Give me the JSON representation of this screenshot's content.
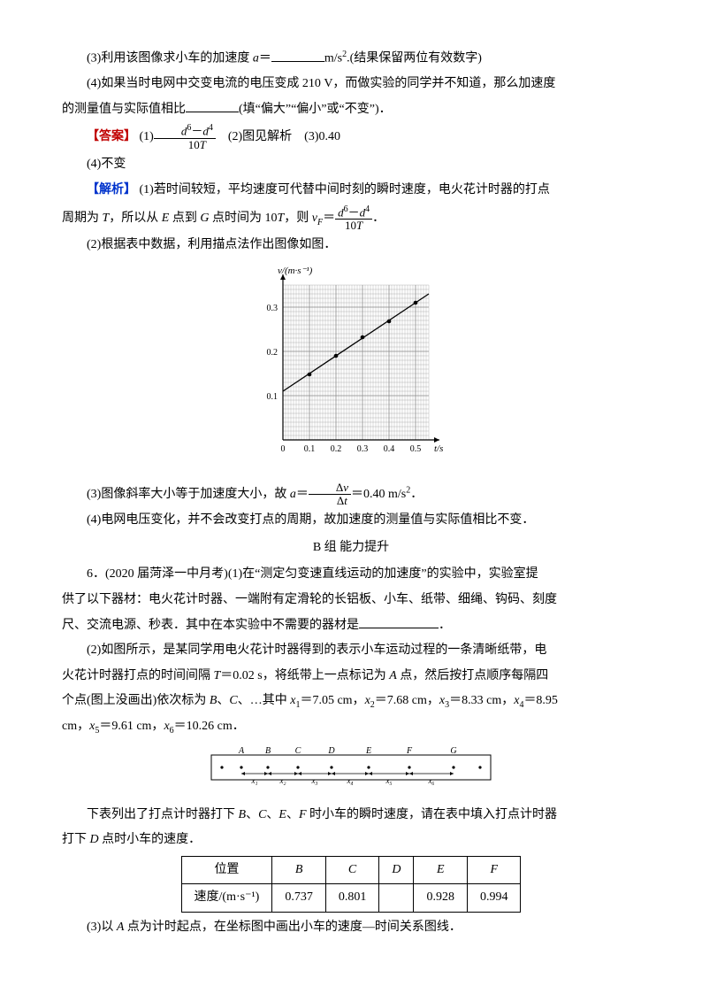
{
  "p3": {
    "prefix": "(3)利用该图像求小车的加速度 ",
    "var_a": "a",
    "eq": "＝",
    "unit": "m/s",
    "sup2": "2",
    "suffix": ".(结果保留两位有效数字)"
  },
  "p4": {
    "line1_a": "(4)如果当时电网中交变电流的电压变成 210 V，而做实验的同学并不知道，那么加速度",
    "line2": "的测量值与实际值相比",
    "line2_suffix": "(填“偏大”“偏小”或“不变”)．"
  },
  "answer": {
    "label": "【答案】",
    "item1_prefix": "(1)",
    "frac1_num_a": "d",
    "frac1_num_sup1": "6",
    "frac1_num_minus": "－",
    "frac1_num_b": "d",
    "frac1_num_sup2": "4",
    "frac1_den": "10",
    "frac1_den_T": "T",
    "item2": "　(2)图见解析　(3)0.40",
    "item4": "(4)不变"
  },
  "explain": {
    "label": "【解析】",
    "p1_a": "(1)若时间较短，平均速度可代替中间时刻的瞬时速度，电火花计时器的打点",
    "p1_b_prefix": "周期为 ",
    "p1_b_T": "T",
    "p1_b_mid": "，所以从 ",
    "p1_b_E": "E",
    "p1_b_mid2": " 点到 ",
    "p1_b_G": "G",
    "p1_b_mid3": " 点时间为 10",
    "p1_b_T2": "T",
    "p1_b_mid4": "，则 ",
    "p1_b_vF": "v",
    "p1_b_vF_sub": "F",
    "p1_b_eq": "＝",
    "p1_b_period": "．",
    "p2": "(2)根据表中数据，利用描点法作出图像如图．",
    "p3_a": "(3)图像斜率大小等于加速度大小，故 ",
    "p3_var": "a",
    "p3_eq": "＝",
    "p3_frac_num": "Δ",
    "p3_frac_num_v": "v",
    "p3_frac_den": "Δ",
    "p3_frac_den_t": "t",
    "p3_val": "＝0.40 m/s",
    "p3_sup": "2",
    "p3_end": "．",
    "p4": "(4)电网电压变化，并不会改变打点的周期，故加速度的测量值与实际值相比不变．"
  },
  "chart": {
    "ylabel": "v/(m·s⁻¹)",
    "xlabel": "t/s",
    "yticks": [
      "0.1",
      "0.2",
      "0.3"
    ],
    "xticks": [
      "0",
      "0.1",
      "0.2",
      "0.3",
      "0.4",
      "0.5"
    ],
    "points": [
      {
        "x": 0.1,
        "y": 0.148
      },
      {
        "x": 0.2,
        "y": 0.19
      },
      {
        "x": 0.3,
        "y": 0.232
      },
      {
        "x": 0.4,
        "y": 0.268
      },
      {
        "x": 0.5,
        "y": 0.31
      }
    ],
    "line_y0": 0.11,
    "line_y_at_055": 0.33,
    "colors": {
      "grid": "#888",
      "axis": "#000",
      "line": "#000",
      "point": "#000"
    }
  },
  "section_b": "B 组 能力提升",
  "q6": {
    "p1_a": "6．(2020 届菏泽一中月考)(1)在“测定匀变速直线运动的加速度”的实验中，实验室提",
    "p1_b": "供了以下器材：电火花计时器、一端附有定滑轮的长铝板、小车、纸带、细绳、钩码、刻度",
    "p1_c": "尺、交流电源、秒表．其中在本实验中不需要的器材是",
    "p1_c_end": "．",
    "p2_a": "(2)如图所示，是某同学用电火花计时器得到的表示小车运动过程的一条清晰纸带，电",
    "p2_b_a": "火花计时器打点的时间间隔 ",
    "p2_b_T": "T",
    "p2_b_eq": "＝0.02 s，将纸带上一点标记为 ",
    "p2_b_A": "A",
    "p2_b_mid": " 点，然后按打点顺序每隔四",
    "p2_c_a": "个点(图上没画出)依次标为 ",
    "p2_c_B": "B",
    "p2_c_c1": "、",
    "p2_c_C": "C",
    "p2_c_c2": "、…其中 ",
    "p2_c_x1": "x",
    "p2_c_x1sub": "1",
    "p2_c_v1": "＝7.05 cm，",
    "p2_c_x2": "x",
    "p2_c_x2sub": "2",
    "p2_c_v2": "＝7.68 cm，",
    "p2_c_x3": "x",
    "p2_c_x3sub": "3",
    "p2_c_v3": "＝8.33 cm，",
    "p2_c_x4": "x",
    "p2_c_x4sub": "4",
    "p2_c_v4": "＝8.95",
    "p2_d_a": "cm，",
    "p2_d_x5": "x",
    "p2_d_x5sub": "5",
    "p2_d_v5": "＝9.61 cm，",
    "p2_d_x6": "x",
    "p2_d_x6sub": "6",
    "p2_d_v6": "＝10.26 cm．",
    "p3_a": "下表列出了打点计时器打下 ",
    "p3_B": "B",
    "p3_c1": "、",
    "p3_C": "C",
    "p3_c2": "、",
    "p3_E": "E",
    "p3_c3": "、",
    "p3_F": "F",
    "p3_mid": " 时小车的瞬时速度，请在表中填入打点计时器",
    "p3_b_a": "打下 ",
    "p3_b_D": "D",
    "p3_b_end": " 点时小车的速度．",
    "p4_a": "(3)以 ",
    "p4_A": "A",
    "p4_end": " 点为计时起点，在坐标图中画出小车的速度—时间关系图线．"
  },
  "tape": {
    "labels": [
      "A",
      "B",
      "C",
      "D",
      "E",
      "F",
      "G"
    ],
    "xlabels": [
      "x₁",
      "x₂",
      "x₃",
      "x₄",
      "x₅",
      "x₆"
    ]
  },
  "table": {
    "h1": "位置",
    "cols": [
      "B",
      "C",
      "D",
      "E",
      "F"
    ],
    "r1_label": "速度/(m·s⁻¹)",
    "r1": [
      "0.737",
      "0.801",
      "",
      "0.928",
      "0.994"
    ]
  }
}
